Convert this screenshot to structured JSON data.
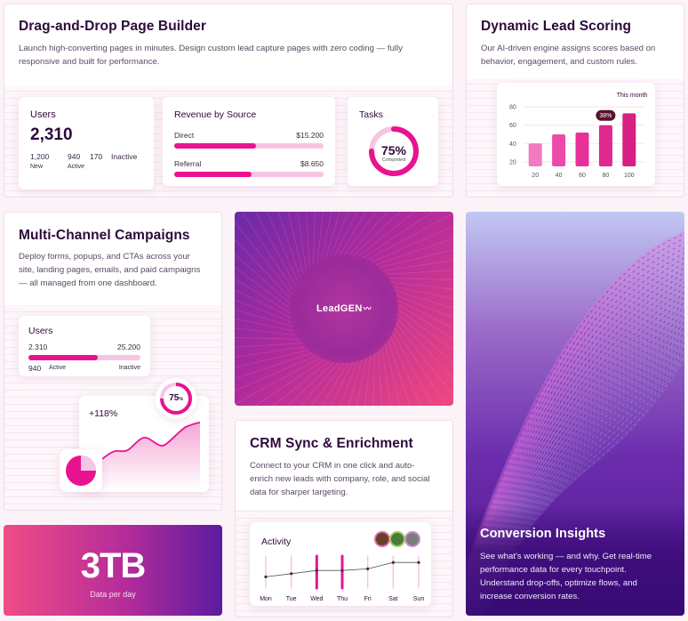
{
  "builder": {
    "title": "Drag-and-Drop Page Builder",
    "desc1": "Launch high-converting pages in minutes. Design custom lead capture pages with zero coding — fully",
    "desc2": "responsive and built for performance.",
    "users": {
      "title": "Users",
      "total": "2,310",
      "new_value": "1,200",
      "new_label": "New",
      "active_value": "940",
      "active_label": "Active",
      "inactive_value": "170",
      "inactive_label": "Inactive"
    },
    "revenue": {
      "title": "Revenue by Source",
      "rows": [
        {
          "label": "Direct",
          "value": "$15.200",
          "fraction": 0.55
        },
        {
          "label": "Referral",
          "value": "$8.650",
          "fraction": 0.52
        }
      ]
    },
    "tasks": {
      "title": "Tasks",
      "percent": "75%",
      "caption": "Completed",
      "fraction": 0.75
    }
  },
  "scoring": {
    "title": "Dynamic Lead Scoring",
    "desc1": "Our AI-driven engine assigns scores based on",
    "desc2": "behavior, engagement, and custom rules.",
    "chart_data": {
      "type": "bar",
      "legend": "This month",
      "categories": [
        "20",
        "40",
        "60",
        "80",
        "100"
      ],
      "values": [
        40,
        50,
        52,
        60,
        73
      ],
      "y_ticks": [
        "80",
        "60",
        "40",
        "20"
      ],
      "ylim": [
        15,
        85
      ],
      "highlight_label": "38%",
      "highlight_index": 3
    }
  },
  "campaigns": {
    "title": "Multi-Channel Campaigns",
    "desc1": "Deploy forms, popups, and CTAs across your",
    "desc2": "site, landing pages, emails, and paid campaigns",
    "desc3": "— all managed from one dashboard.",
    "users": {
      "title": "Users",
      "left_value": "2.310",
      "right_value": "25.200",
      "active_value": "940",
      "active_label": "Active",
      "inactive_label": "Inactive",
      "fraction": 0.62
    },
    "growth": {
      "label": "+118%"
    },
    "ring": {
      "percent": "75",
      "unit": "%",
      "fraction": 0.75
    }
  },
  "brand": {
    "name": "LeadGEN"
  },
  "crm": {
    "title": "CRM Sync & Enrichment",
    "desc1": "Connect to your CRM in one click and auto-",
    "desc2": "enrich new leads with company, role, and social",
    "desc3": "data for sharper targeting.",
    "activity": {
      "title": "Activity",
      "days": [
        "Mon",
        "Tue",
        "Wed",
        "Thu",
        "Fri",
        "Sat",
        "Sun"
      ],
      "values": [
        0.35,
        0.45,
        0.55,
        0.55,
        0.6,
        0.8,
        0.8
      ],
      "highlight_days": [
        2,
        3
      ]
    }
  },
  "storage": {
    "value": "3TB",
    "caption": "Data per day"
  },
  "insights": {
    "title": "Conversion Insights",
    "desc1": "See what's working — and why. Get real-time",
    "desc2": "performance data for every touchpoint.",
    "desc3": "Understand drop-offs, optimize flows, and",
    "desc4": "increase conversion rates."
  },
  "colors": {
    "accent": "#e8148f",
    "light_accent": "#f7c5e4",
    "dark_text": "#2d0a3b",
    "purple": "#5a1aa0"
  }
}
